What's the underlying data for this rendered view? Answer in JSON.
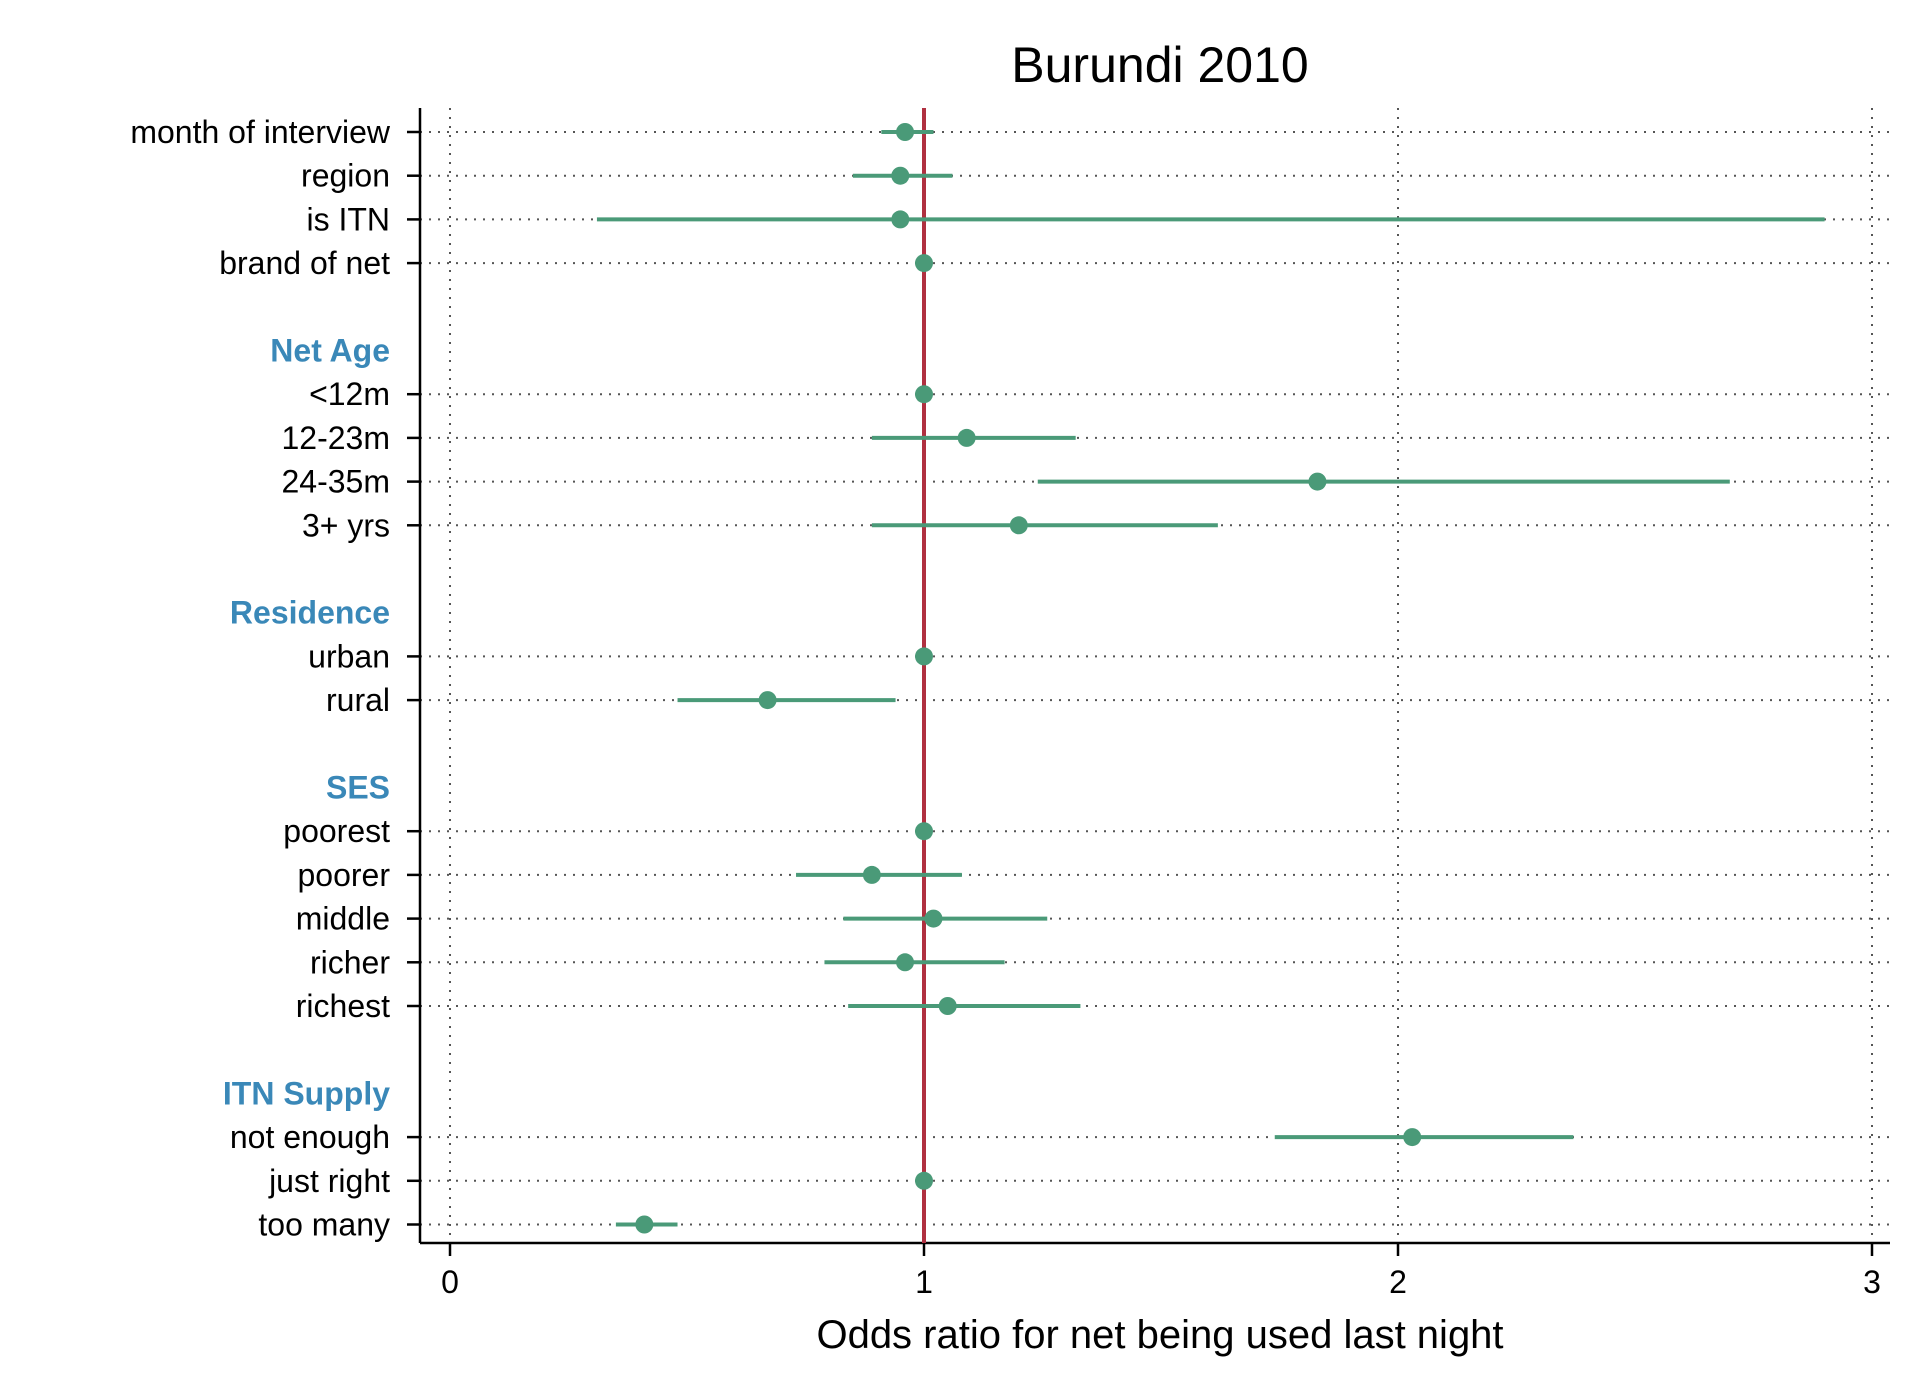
{
  "chart_data": {
    "type": "forest",
    "title": "Burundi 2010",
    "xlabel": "Odds ratio for net being used last night",
    "xlim": [
      0,
      3
    ],
    "xticks": [
      "0",
      "1",
      "2",
      "3"
    ],
    "reference_line": 1,
    "colors": {
      "points": "#4a9a78",
      "reference": "#b03040",
      "group_label": "#3a88b8",
      "grid": "#555555"
    },
    "rows": [
      {
        "label": "month of interview",
        "or": 0.96,
        "lo": 0.91,
        "hi": 1.02,
        "group": false
      },
      {
        "label": "region",
        "or": 0.95,
        "lo": 0.85,
        "hi": 1.06,
        "group": false
      },
      {
        "label": "is ITN",
        "or": 0.95,
        "lo": 0.31,
        "hi": 2.9,
        "group": false
      },
      {
        "label": "brand of net",
        "or": 1.0,
        "lo": 1.0,
        "hi": 1.0,
        "group": false
      },
      {
        "label": "",
        "gap": true
      },
      {
        "label": "Net Age",
        "group": true
      },
      {
        "label": "<12m",
        "or": 1.0,
        "lo": 1.0,
        "hi": 1.0,
        "group": false
      },
      {
        "label": "12-23m",
        "or": 1.09,
        "lo": 0.89,
        "hi": 1.32,
        "group": false
      },
      {
        "label": "24-35m",
        "or": 1.83,
        "lo": 1.24,
        "hi": 2.7,
        "group": false
      },
      {
        "label": "3+ yrs",
        "or": 1.2,
        "lo": 0.89,
        "hi": 1.62,
        "group": false
      },
      {
        "label": "",
        "gap": true
      },
      {
        "label": "Residence",
        "group": true
      },
      {
        "label": "urban",
        "or": 1.0,
        "lo": 1.0,
        "hi": 1.0,
        "group": false
      },
      {
        "label": "rural",
        "or": 0.67,
        "lo": 0.48,
        "hi": 0.94,
        "group": false
      },
      {
        "label": "",
        "gap": true
      },
      {
        "label": "SES",
        "group": true
      },
      {
        "label": "poorest",
        "or": 1.0,
        "lo": 1.0,
        "hi": 1.0,
        "group": false
      },
      {
        "label": "poorer",
        "or": 0.89,
        "lo": 0.73,
        "hi": 1.08,
        "group": false
      },
      {
        "label": "middle",
        "or": 1.02,
        "lo": 0.83,
        "hi": 1.26,
        "group": false
      },
      {
        "label": "richer",
        "or": 0.96,
        "lo": 0.79,
        "hi": 1.17,
        "group": false
      },
      {
        "label": "richest",
        "or": 1.05,
        "lo": 0.84,
        "hi": 1.33,
        "group": false
      },
      {
        "label": "",
        "gap": true
      },
      {
        "label": "ITN Supply",
        "group": true
      },
      {
        "label": "not enough",
        "or": 2.03,
        "lo": 1.74,
        "hi": 2.37,
        "group": false
      },
      {
        "label": "just right",
        "or": 1.0,
        "lo": 1.0,
        "hi": 1.0,
        "group": false
      },
      {
        "label": "too many",
        "or": 0.41,
        "lo": 0.35,
        "hi": 0.48,
        "group": false
      }
    ]
  }
}
